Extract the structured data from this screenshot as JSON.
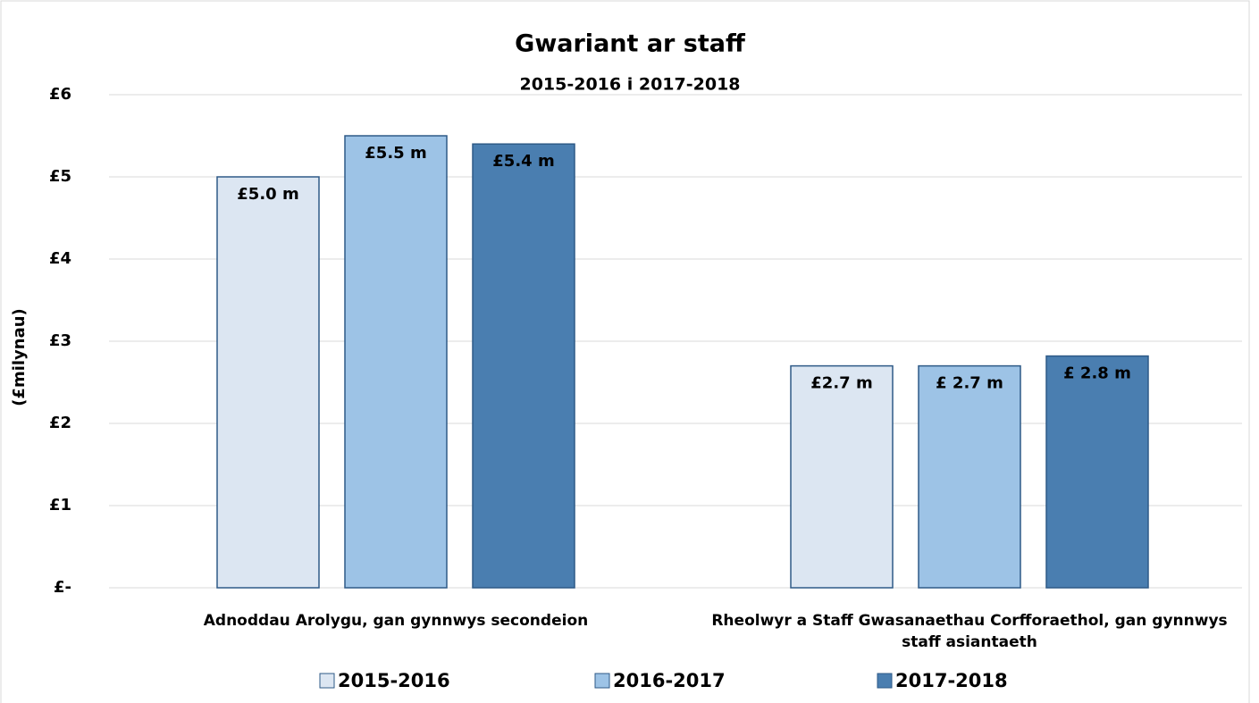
{
  "chart_data": {
    "type": "bar",
    "title": "Gwariant ar staff",
    "subtitle": "2015-2016 i 2017-2018",
    "y_label": "(£milynau)",
    "categories": [
      "Adnoddau Arolygu, gan gynnwys secondeion",
      "Rheolwyr a Staff Gwasanaethau Corfforaethol, gan gynnwys staff asiantaeth"
    ],
    "series": [
      {
        "name": "2015-2016",
        "color": "#dce6f2",
        "values": [
          5.0,
          2.7
        ],
        "value_labels": [
          "£5.0 m",
          "£2.7 m"
        ]
      },
      {
        "name": "2016-2017",
        "color": "#9dc3e6",
        "values": [
          5.5,
          2.7
        ],
        "value_labels": [
          "£5.5 m",
          "£ 2.7 m"
        ]
      },
      {
        "name": "2017-2018",
        "color": "#4a7eb0",
        "values": [
          5.4,
          2.82
        ],
        "value_labels": [
          "£5.4 m",
          "£ 2.8 m"
        ]
      }
    ],
    "ylim": [
      0,
      6
    ],
    "yticks": [
      {
        "value": 0,
        "label": "£-"
      },
      {
        "value": 1,
        "label": "£1"
      },
      {
        "value": 2,
        "label": "£2"
      },
      {
        "value": 3,
        "label": "£3"
      },
      {
        "value": 4,
        "label": "£4"
      },
      {
        "value": 5,
        "label": "£5"
      },
      {
        "value": 6,
        "label": "£6"
      }
    ],
    "grid": true,
    "legend": "bottom"
  }
}
